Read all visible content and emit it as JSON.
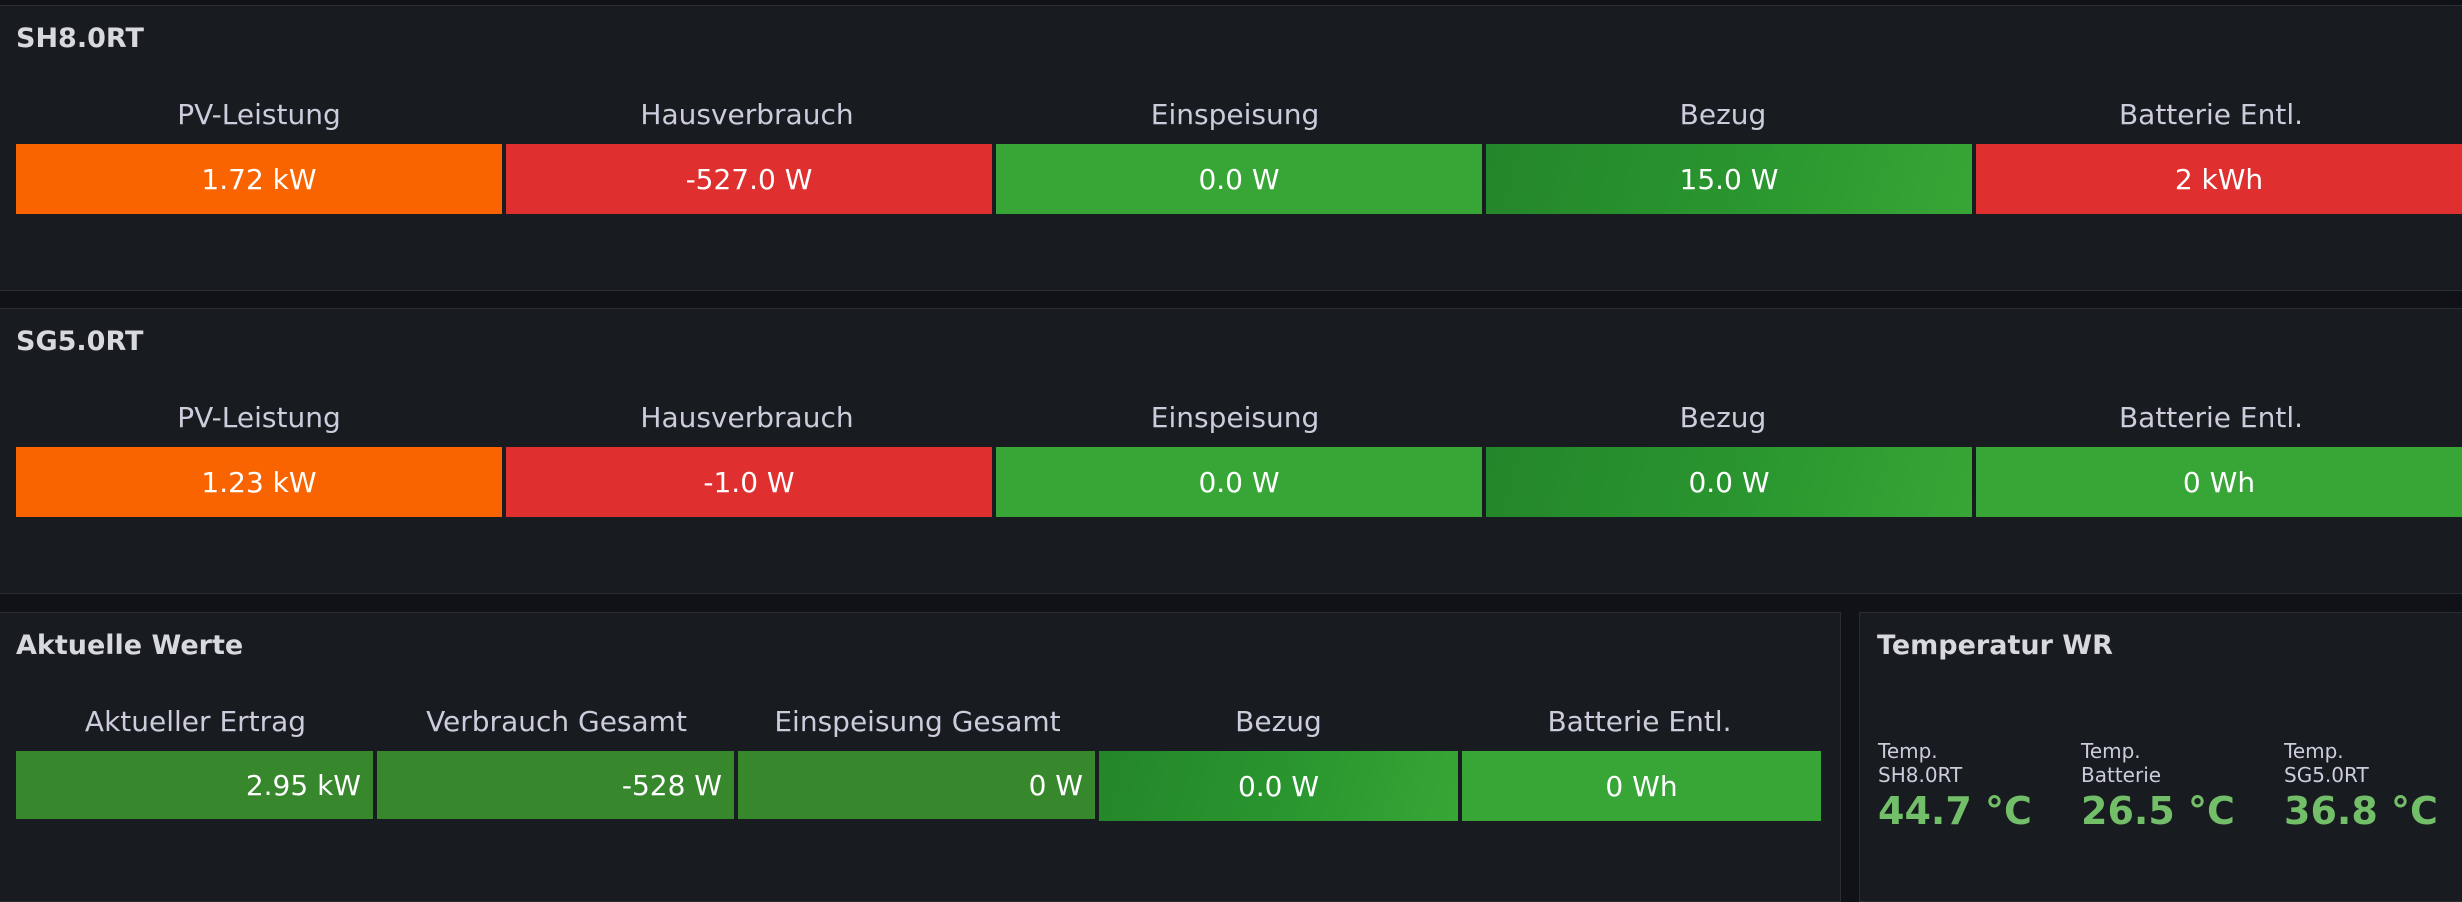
{
  "panels": [
    {
      "title": "SH8.0RT",
      "headers": [
        "PV-Leistung",
        "Hausverbrauch",
        "Einspeisung",
        "Bezug",
        "Batterie Entl."
      ],
      "values": [
        "1.72 kW",
        "-527.0 W",
        "0.0 W",
        "15.0 W",
        "2 kWh"
      ],
      "colors": [
        "#fa6400",
        "#e02f2f",
        "#37a636",
        "gradient",
        "#e02f2f"
      ],
      "stub_color": "#37a636"
    },
    {
      "title": "SG5.0RT",
      "headers": [
        "PV-Leistung",
        "Hausverbrauch",
        "Einspeisung",
        "Bezug",
        "Batterie Entl."
      ],
      "values": [
        "1.23 kW",
        "-1.0 W",
        "0.0 W",
        "0.0 W",
        "0 Wh"
      ],
      "colors": [
        "#fa6400",
        "#e02f2f",
        "#37a636",
        "gradient",
        "#37a636"
      ],
      "stub_color": "#37a636"
    },
    {
      "title": "Aktuelle Werte",
      "headers": [
        "Aktueller Ertrag",
        "Verbrauch Gesamt",
        "Einspeisung Gesamt",
        "Bezug",
        "Batterie Entl."
      ],
      "values": [
        "2.95 kW",
        "-528 W",
        "0 W",
        "0.0 W",
        "0 Wh"
      ],
      "colors": [
        "#37872d",
        "#37872d",
        "#37872d",
        "gradient",
        "#37a636"
      ]
    }
  ],
  "temperature_panel": {
    "title": "Temperatur WR",
    "items": [
      {
        "label": "Temp.\nSH8.0RT",
        "value": "44.7 °C"
      },
      {
        "label": "Temp.\nBatterie",
        "value": "26.5 °C"
      },
      {
        "label": "Temp.\nSG5.0RT",
        "value": "36.8 °C"
      }
    ],
    "value_color": "#73bf69"
  }
}
